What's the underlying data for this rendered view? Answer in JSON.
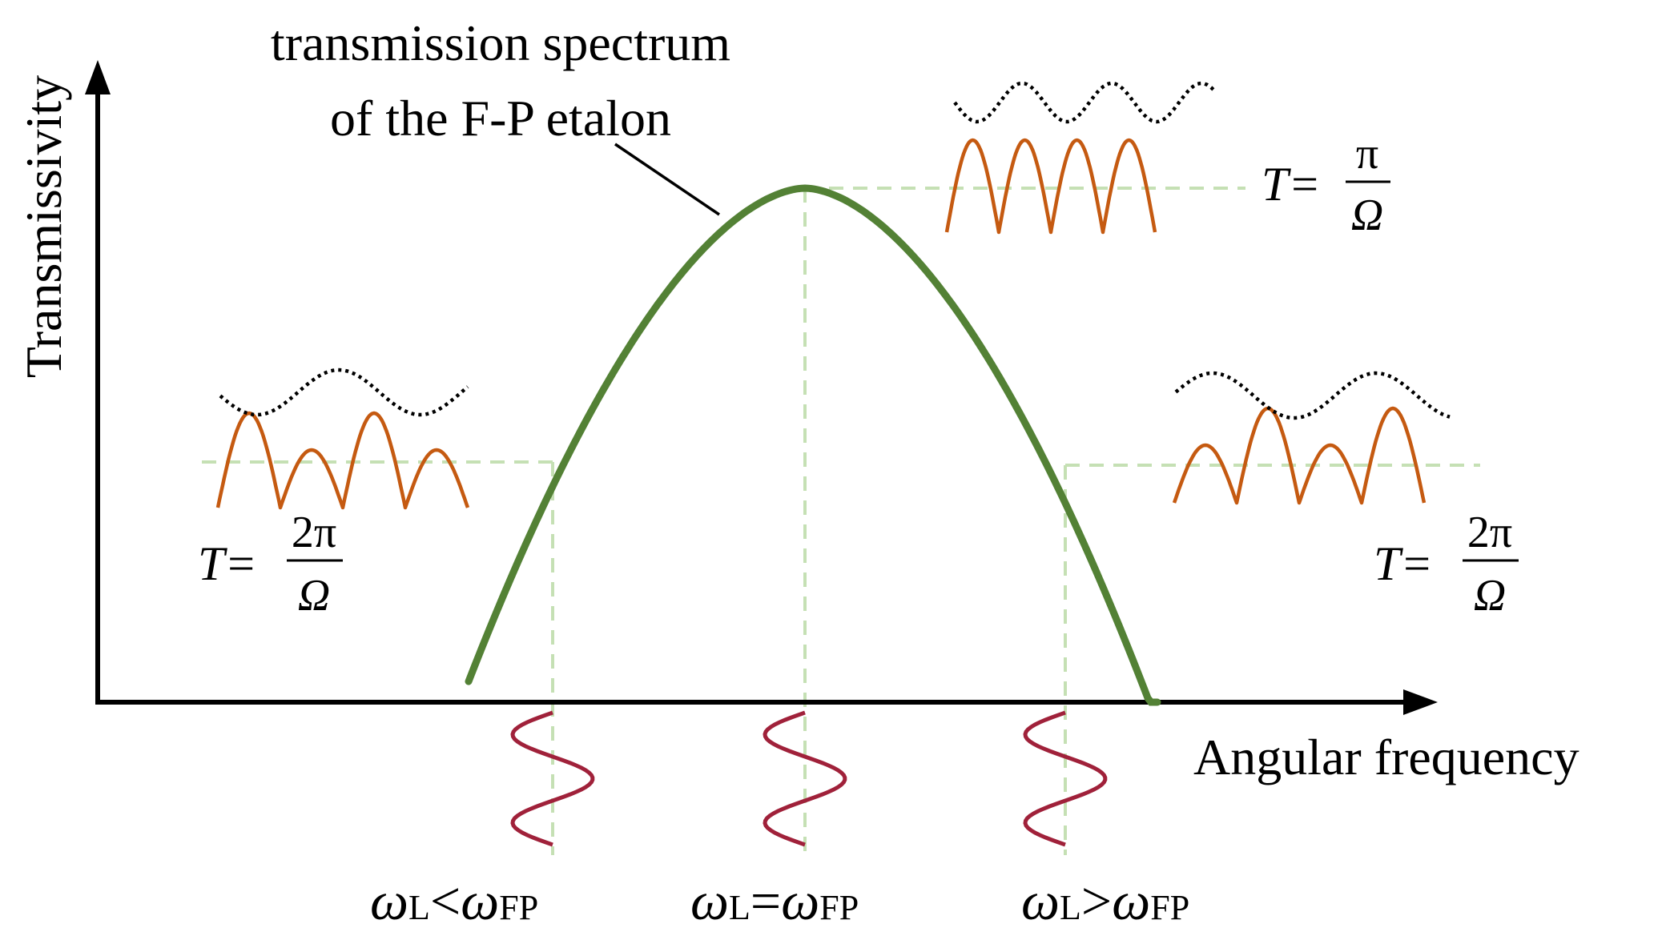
{
  "labels": {
    "y_axis": "Transmissivity",
    "x_axis": "Angular frequency",
    "curve_title_line1": "transmission spectrum",
    "curve_title_line2": "of the F-P etalon"
  },
  "equations": {
    "left": {
      "lhs": "T=",
      "numerator": "2π",
      "denominator": "Ω"
    },
    "center": {
      "lhs": "T=",
      "numerator": "π",
      "denominator": "Ω"
    },
    "right": {
      "lhs": "T=",
      "numerator": "2π",
      "denominator": "Ω"
    }
  },
  "conditions": {
    "left": {
      "omega": "ω",
      "L": "L",
      "op": "<",
      "FP": "FP"
    },
    "center": {
      "omega": "ω",
      "L": "L",
      "op": "=",
      "FP": "FP"
    },
    "right": {
      "omega": "ω",
      "L": "L",
      "op": ">",
      "FP": "FP"
    }
  },
  "colors": {
    "axis": "#000000",
    "spectrum": "#538135",
    "guide": "#c5e0b4",
    "transmitted": "#c55a11",
    "envelope": "#000000",
    "laser": "#a0213a"
  }
}
